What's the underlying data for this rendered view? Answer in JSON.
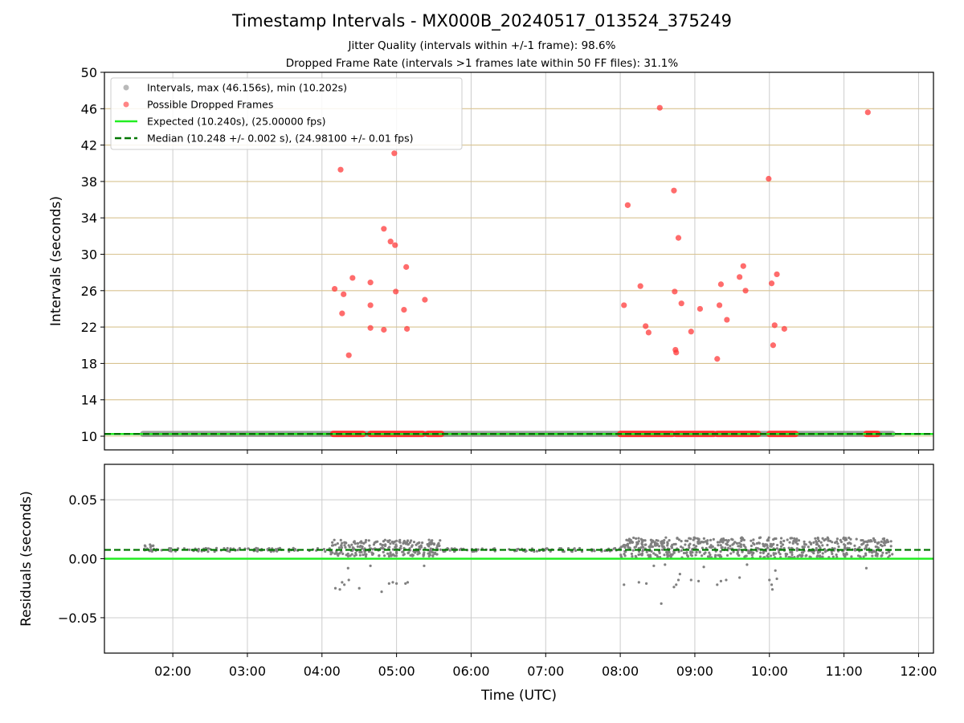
{
  "figure": {
    "title": "Timestamp Intervals - MX000B_20240517_013524_375249",
    "subtitle_jitter": "Jitter Quality (intervals within +/-1 frame): 98.6%",
    "subtitle_dropped": "Dropped Frame Rate (intervals >1 frames late within 50 FF files): 31.1%"
  },
  "colors": {
    "intervals": "#808080",
    "dropped": "#ff3333",
    "expected": "#22ee22",
    "median": "#007700",
    "hline": "#d8c390",
    "grid": "#cccccc"
  },
  "chart_data": [
    {
      "type": "scatter",
      "xlabel": "",
      "ylabel": "Intervals (seconds)",
      "xlim_hours": [
        1.083,
        12.2
      ],
      "ylim": [
        8.5,
        50
      ],
      "yticks": [
        10,
        14,
        18,
        22,
        26,
        30,
        34,
        38,
        42,
        46,
        50
      ],
      "grid": true,
      "legend_position": "upper-left",
      "legend": [
        "Intervals, max (46.156s), min (10.202s)",
        "Possible Dropped Frames",
        "Expected (10.240s), (25.00000 fps)",
        "Median (10.248 +/- 0.002 s), (24.98100 +/- 0.01 fps)"
      ],
      "series": [
        {
          "name": "Intervals, max (46.156s), min (10.202s)",
          "baseline_value": 10.25,
          "x_range_hours": [
            1.6,
            11.65
          ]
        },
        {
          "name": "Possible Dropped Frames",
          "baseline_value": 10.25,
          "baseline_segments_hours": [
            [
              4.15,
              4.55
            ],
            [
              4.65,
              5.35
            ],
            [
              5.42,
              5.6
            ],
            [
              8.0,
              8.7
            ],
            [
              8.75,
              9.25
            ],
            [
              9.3,
              9.85
            ],
            [
              10.0,
              10.35
            ],
            [
              11.3,
              11.45
            ]
          ],
          "points": [
            [
              4.25,
              39.3
            ],
            [
              4.97,
              41.1
            ],
            [
              4.17,
              26.2
            ],
            [
              4.29,
              25.6
            ],
            [
              4.41,
              27.4
            ],
            [
              4.27,
              23.5
            ],
            [
              4.36,
              18.9
            ],
            [
              4.65,
              26.9
            ],
            [
              4.65,
              24.4
            ],
            [
              4.65,
              21.9
            ],
            [
              4.83,
              21.7
            ],
            [
              4.83,
              32.8
            ],
            [
              4.92,
              31.4
            ],
            [
              4.98,
              31.0
            ],
            [
              4.99,
              25.9
            ],
            [
              5.1,
              23.9
            ],
            [
              5.13,
              28.6
            ],
            [
              5.14,
              21.8
            ],
            [
              5.38,
              25.0
            ],
            [
              8.53,
              46.1
            ],
            [
              8.72,
              37.0
            ],
            [
              8.78,
              31.8
            ],
            [
              8.05,
              24.4
            ],
            [
              8.1,
              35.4
            ],
            [
              8.27,
              26.5
            ],
            [
              8.34,
              22.1
            ],
            [
              8.38,
              21.4
            ],
            [
              8.73,
              25.9
            ],
            [
              8.82,
              24.6
            ],
            [
              8.74,
              19.5
            ],
            [
              8.75,
              19.2
            ],
            [
              8.95,
              21.5
            ],
            [
              9.07,
              24.0
            ],
            [
              9.3,
              18.5
            ],
            [
              9.33,
              24.4
            ],
            [
              9.35,
              26.7
            ],
            [
              9.43,
              22.8
            ],
            [
              9.6,
              27.5
            ],
            [
              9.65,
              28.7
            ],
            [
              9.68,
              26.0
            ],
            [
              9.99,
              38.3
            ],
            [
              10.03,
              26.8
            ],
            [
              10.05,
              20.0
            ],
            [
              10.07,
              22.2
            ],
            [
              10.1,
              27.8
            ],
            [
              10.2,
              21.8
            ],
            [
              11.32,
              45.6
            ]
          ]
        },
        {
          "name": "Expected (10.240s), (25.00000 fps)",
          "value": 10.24
        },
        {
          "name": "Median (10.248 +/- 0.002 s), (24.98100 +/- 0.01 fps)",
          "value": 10.248
        }
      ]
    },
    {
      "type": "scatter",
      "xlabel": "Time (UTC)",
      "ylabel": "Residuals (seconds)",
      "xlim_hours": [
        1.083,
        12.2
      ],
      "ylim": [
        -0.08,
        0.08
      ],
      "yticks": [
        0.05,
        0.0,
        -0.05
      ],
      "ytick_labels": [
        "0.05",
        "0.00",
        "−0.05"
      ],
      "xticks_hours": [
        2,
        3,
        4,
        5,
        6,
        7,
        8,
        9,
        10,
        11,
        12
      ],
      "xtick_labels": [
        "02:00",
        "03:00",
        "04:00",
        "05:00",
        "06:00",
        "07:00",
        "08:00",
        "09:00",
        "10:00",
        "11:00",
        "12:00"
      ],
      "grid": true,
      "expected_residual": 0.0,
      "median_residual": 0.0075,
      "series": [
        {
          "name": "Residuals",
          "dense_regions": [
            {
              "x_hours": [
                1.6,
                1.75
              ],
              "y": [
                0.005,
                0.012
              ]
            },
            {
              "x_hours": [
                1.75,
                4.1
              ],
              "y": [
                0.006,
                0.009
              ]
            },
            {
              "x_hours": [
                4.1,
                5.6
              ],
              "y": [
                0.002,
                0.016
              ]
            },
            {
              "x_hours": [
                5.6,
                8.0
              ],
              "y": [
                0.006,
                0.009
              ]
            },
            {
              "x_hours": [
                8.0,
                11.65
              ],
              "y": [
                0.001,
                0.018
              ]
            }
          ],
          "outliers": [
            [
              4.18,
              -0.025
            ],
            [
              4.24,
              -0.026
            ],
            [
              4.27,
              -0.02
            ],
            [
              4.3,
              -0.022
            ],
            [
              4.36,
              -0.018
            ],
            [
              4.5,
              -0.025
            ],
            [
              4.8,
              -0.028
            ],
            [
              4.9,
              -0.021
            ],
            [
              4.95,
              -0.02
            ],
            [
              5.0,
              -0.021
            ],
            [
              5.12,
              -0.021
            ],
            [
              5.15,
              -0.02
            ],
            [
              4.35,
              -0.008
            ],
            [
              4.65,
              -0.006
            ],
            [
              5.37,
              -0.006
            ],
            [
              8.05,
              -0.022
            ],
            [
              8.25,
              -0.02
            ],
            [
              8.35,
              -0.021
            ],
            [
              8.55,
              -0.038
            ],
            [
              8.72,
              -0.024
            ],
            [
              8.75,
              -0.022
            ],
            [
              8.78,
              -0.018
            ],
            [
              8.8,
              -0.013
            ],
            [
              8.95,
              -0.018
            ],
            [
              9.05,
              -0.019
            ],
            [
              9.12,
              -0.007
            ],
            [
              9.3,
              -0.022
            ],
            [
              9.35,
              -0.019
            ],
            [
              9.42,
              -0.018
            ],
            [
              9.6,
              -0.016
            ],
            [
              10.0,
              -0.018
            ],
            [
              10.03,
              -0.022
            ],
            [
              10.04,
              -0.026
            ],
            [
              10.08,
              -0.01
            ],
            [
              10.1,
              -0.017
            ],
            [
              8.45,
              -0.006
            ],
            [
              8.6,
              -0.005
            ],
            [
              9.7,
              -0.005
            ],
            [
              11.3,
              -0.008
            ]
          ]
        }
      ]
    }
  ]
}
